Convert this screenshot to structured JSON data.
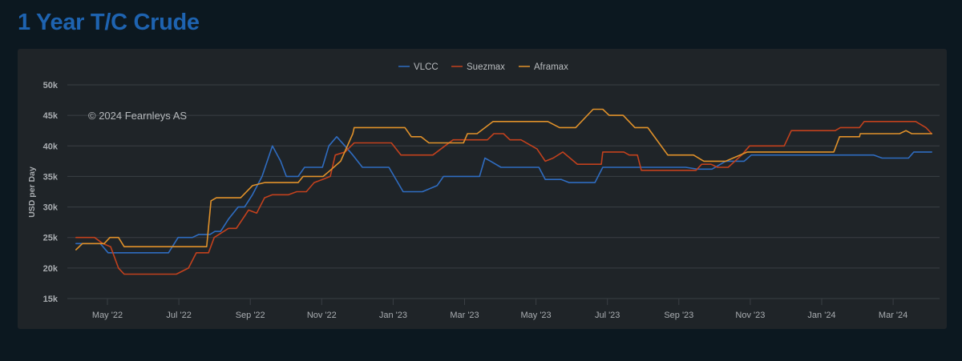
{
  "page": {
    "title": "1 Year T/C Crude"
  },
  "chart_data": {
    "type": "line",
    "title": "1 Year T/C Crude",
    "xlabel": "",
    "ylabel": "USD per Day",
    "x_unit": "months since Jan 2022 (decimal)",
    "ylim": [
      15,
      50
    ],
    "y_unit": "k USD/day",
    "yticks": [
      15,
      20,
      25,
      30,
      35,
      40,
      45,
      50
    ],
    "ytick_labels": [
      "15k",
      "20k",
      "25k",
      "30k",
      "35k",
      "40k",
      "45k",
      "50k"
    ],
    "xticks": [
      4,
      6,
      8,
      10,
      12,
      14,
      16,
      18,
      20,
      22,
      24,
      26
    ],
    "xtick_labels": [
      "May '22",
      "Jul '22",
      "Sep '22",
      "Nov '22",
      "Jan '23",
      "Mar '23",
      "May '23",
      "Jul '23",
      "Sep '23",
      "Nov '23",
      "Jan '24",
      "Mar '24"
    ],
    "grid": true,
    "legend_position": "top-center",
    "annotation": "© 2024 Fearnleys AS",
    "series": [
      {
        "name": "VLCC",
        "color": "#2f6cc0",
        "x": [
          3.12,
          3.46,
          3.8,
          4.02,
          4.36,
          5.71,
          5.98,
          6.38,
          6.56,
          6.87,
          7.01,
          7.17,
          7.39,
          7.66,
          7.84,
          8.06,
          8.33,
          8.62,
          8.85,
          9.01,
          9.34,
          9.52,
          10.02,
          10.2,
          10.42,
          10.65,
          10.87,
          11.14,
          11.88,
          12.28,
          12.82,
          13.23,
          13.41,
          14.42,
          14.57,
          14.73,
          15.02,
          16.08,
          16.26,
          16.71,
          16.93,
          17.65,
          17.87,
          20.19,
          20.52,
          20.93,
          21.31,
          21.83,
          22.03,
          25.46,
          25.69,
          26.43,
          26.58,
          27.08
        ],
        "y": [
          24,
          24,
          24,
          22.5,
          22.5,
          22.5,
          25,
          25,
          25.5,
          25.5,
          26,
          26,
          28,
          30,
          30,
          32,
          35,
          40,
          37.5,
          35,
          35,
          36.5,
          36.5,
          40,
          41.5,
          40,
          38.5,
          36.5,
          36.5,
          32.5,
          32.5,
          33.5,
          35,
          35,
          38,
          37.5,
          36.5,
          36.5,
          34.5,
          34.5,
          34,
          34,
          36.5,
          36.5,
          36.2,
          36.2,
          37.5,
          37.5,
          38.5,
          38.5,
          38,
          38,
          39,
          39
        ]
      },
      {
        "name": "Suezmax",
        "color": "#c2411d",
        "x": [
          3.12,
          3.64,
          3.87,
          4.09,
          4.31,
          4.47,
          5.93,
          6.27,
          6.49,
          6.83,
          6.99,
          7.39,
          7.61,
          7.84,
          7.95,
          8.18,
          8.4,
          8.62,
          9.07,
          9.3,
          9.57,
          9.79,
          10.02,
          10.24,
          10.38,
          10.65,
          10.91,
          11.95,
          12.22,
          13.11,
          13.45,
          13.68,
          14.64,
          14.82,
          15.09,
          15.27,
          15.58,
          16.03,
          16.26,
          16.48,
          16.75,
          17.16,
          17.83,
          17.87,
          18.46,
          18.61,
          18.84,
          18.95,
          20.48,
          20.64,
          20.9,
          21.08,
          21.38,
          21.76,
          21.98,
          22.95,
          23.15,
          24.38,
          24.52,
          25.06,
          25.19,
          26.63,
          26.92,
          27.08
        ],
        "y": [
          25,
          25,
          24,
          23.5,
          20,
          19,
          19,
          20,
          22.5,
          22.5,
          25,
          26.5,
          26.5,
          28.5,
          29.5,
          29,
          31.5,
          32,
          32,
          32.5,
          32.5,
          34,
          34.5,
          35,
          38.5,
          39,
          40.5,
          40.5,
          38.5,
          38.5,
          40,
          41,
          41,
          42,
          42,
          41,
          41,
          39.5,
          37.5,
          38,
          39,
          37,
          37,
          39,
          39,
          38.5,
          38.5,
          36,
          36,
          37,
          37,
          36.5,
          36.5,
          38.5,
          40,
          40,
          42.5,
          42.5,
          43,
          43,
          44,
          44,
          43,
          42
        ]
      },
      {
        "name": "Aframax",
        "color": "#e0912a",
        "x": [
          3.12,
          3.3,
          3.91,
          4.07,
          4.31,
          4.47,
          6.78,
          6.9,
          7.05,
          7.73,
          8.06,
          8.4,
          9.34,
          9.48,
          10.04,
          10.24,
          10.53,
          10.87,
          10.91,
          12.33,
          12.51,
          12.78,
          13.0,
          13.97,
          14.08,
          14.35,
          14.8,
          16.33,
          16.66,
          17.11,
          17.6,
          17.87,
          18.05,
          18.44,
          18.77,
          19.13,
          19.69,
          20.41,
          20.7,
          21.31,
          21.92,
          24.34,
          24.5,
          25.06,
          25.08,
          25.24,
          26.18,
          26.36,
          26.52,
          27.08
        ],
        "y": [
          23,
          24,
          24,
          25,
          25,
          23.5,
          23.5,
          31,
          31.5,
          31.5,
          33.5,
          34,
          34,
          35,
          35,
          36,
          37.5,
          42,
          43,
          43,
          41.5,
          41.5,
          40.5,
          40.5,
          42,
          42,
          44,
          44,
          43,
          43,
          46,
          46,
          45,
          45,
          43,
          43,
          38.5,
          38.5,
          37.5,
          37.5,
          39,
          39,
          41.5,
          41.5,
          42,
          42,
          42,
          42.5,
          42,
          42
        ]
      }
    ]
  }
}
